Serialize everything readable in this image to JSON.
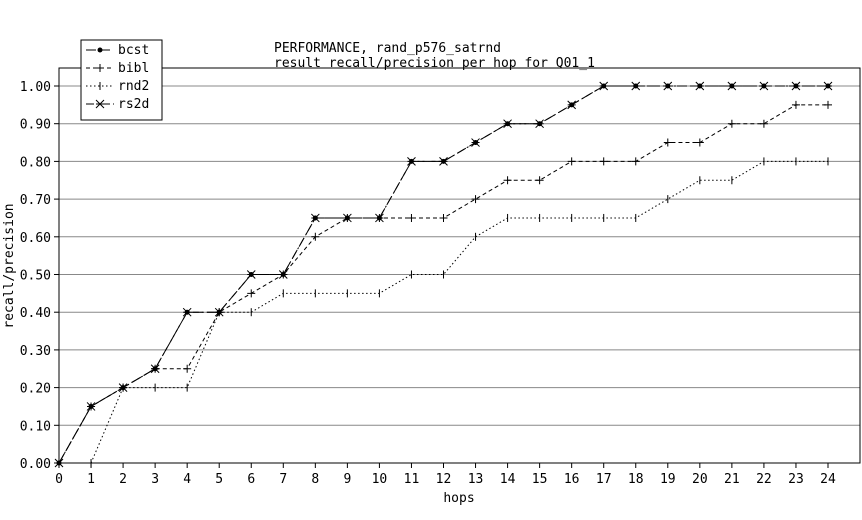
{
  "chart_data": {
    "type": "line",
    "title": "PERFORMANCE, rand_p576_satrnd",
    "subtitle": "result recall/precision per hop for Q01_1",
    "xlabel": "hops",
    "ylabel": "recall/precision",
    "xlim": [
      0,
      24
    ],
    "ylim": [
      0,
      1
    ],
    "grid": "horizontal",
    "legend_position": "top-left",
    "x": [
      0,
      1,
      2,
      3,
      4,
      5,
      6,
      7,
      8,
      9,
      10,
      11,
      12,
      13,
      14,
      15,
      16,
      17,
      18,
      19,
      20,
      21,
      22,
      23,
      24
    ],
    "x_ticks": [
      "0",
      "1",
      "2",
      "3",
      "4",
      "5",
      "6",
      "7",
      "8",
      "9",
      "10",
      "11",
      "12",
      "13",
      "14",
      "15",
      "16",
      "17",
      "18",
      "19",
      "20",
      "21",
      "22",
      "23",
      "24"
    ],
    "y_ticks": [
      {
        "value": 0.0,
        "label": "0.00"
      },
      {
        "value": 0.1,
        "label": "0.10"
      },
      {
        "value": 0.2,
        "label": "0.20"
      },
      {
        "value": 0.3,
        "label": "0.30"
      },
      {
        "value": 0.4,
        "label": "0.40"
      },
      {
        "value": 0.5,
        "label": "0.50"
      },
      {
        "value": 0.6,
        "label": "0.60"
      },
      {
        "value": 0.7,
        "label": "0.70"
      },
      {
        "value": 0.8,
        "label": "0.80"
      },
      {
        "value": 0.9,
        "label": "0.90"
      },
      {
        "value": 1.0,
        "label": "1.00"
      }
    ],
    "series": [
      {
        "name": "bcst",
        "marker": "dot",
        "dash": "10,4",
        "values": [
          0,
          0.15,
          0.2,
          0.25,
          0.4,
          0.4,
          0.5,
          0.5,
          0.65,
          0.65,
          0.65,
          0.8,
          0.8,
          0.85,
          0.9,
          0.9,
          0.95,
          1,
          1,
          1,
          1,
          1,
          1,
          1,
          1
        ]
      },
      {
        "name": "bibl",
        "marker": "plus",
        "dash": "4,3",
        "values": [
          0,
          0.15,
          0.2,
          0.25,
          0.25,
          0.4,
          0.45,
          0.5,
          0.6,
          0.65,
          0.65,
          0.65,
          0.65,
          0.7,
          0.75,
          0.75,
          0.8,
          0.8,
          0.8,
          0.85,
          0.85,
          0.9,
          0.9,
          0.95,
          0.95
        ]
      },
      {
        "name": "rnd2",
        "marker": "vtick",
        "dash": "1.5,2.5",
        "values": [
          0,
          0,
          0.2,
          0.2,
          0.2,
          0.4,
          0.4,
          0.45,
          0.45,
          0.45,
          0.45,
          0.5,
          0.5,
          0.6,
          0.65,
          0.65,
          0.65,
          0.65,
          0.65,
          0.7,
          0.75,
          0.75,
          0.8,
          0.8,
          0.8
        ]
      },
      {
        "name": "rs2d",
        "marker": "star",
        "dash": "8,3,2,3",
        "values": [
          0,
          0.15,
          0.2,
          0.25,
          0.4,
          0.4,
          0.5,
          0.5,
          0.65,
          0.65,
          0.65,
          0.8,
          0.8,
          0.85,
          0.9,
          0.9,
          0.95,
          1,
          1,
          1,
          1,
          1,
          1,
          1,
          1
        ]
      }
    ]
  }
}
